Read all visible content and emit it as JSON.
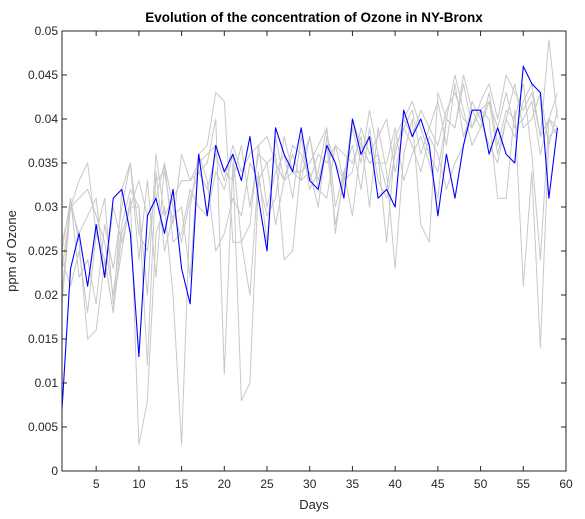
{
  "chart_data": {
    "type": "line",
    "title": "Evolution of the concentration of Ozone in NY-Bronx",
    "xlabel": "Days",
    "ylabel": "ppm of Ozone",
    "xlim": [
      1,
      60
    ],
    "ylim": [
      0,
      0.05
    ],
    "xticks": [
      5,
      10,
      15,
      20,
      25,
      30,
      35,
      40,
      45,
      50,
      55,
      60
    ],
    "yticks": [
      0,
      0.005,
      0.01,
      0.015,
      0.02,
      0.025,
      0.03,
      0.035,
      0.04,
      0.045,
      0.05
    ],
    "x": [
      1,
      2,
      3,
      4,
      5,
      6,
      7,
      8,
      9,
      10,
      11,
      12,
      13,
      14,
      15,
      16,
      17,
      18,
      19,
      20,
      21,
      22,
      23,
      24,
      25,
      26,
      27,
      28,
      29,
      30,
      31,
      32,
      33,
      34,
      35,
      36,
      37,
      38,
      39,
      40,
      41,
      42,
      43,
      44,
      45,
      46,
      47,
      48,
      49,
      50,
      51,
      52,
      53,
      54,
      55,
      56,
      57,
      58,
      59
    ],
    "grid": false,
    "legend": "none",
    "series": [
      {
        "highlight": true,
        "color": "#0000ff",
        "values": [
          0.007,
          0.023,
          0.027,
          0.021,
          0.028,
          0.022,
          0.031,
          0.032,
          0.027,
          0.013,
          0.029,
          0.031,
          0.027,
          0.032,
          0.023,
          0.019,
          0.036,
          0.029,
          0.037,
          0.034,
          0.036,
          0.033,
          0.038,
          0.031,
          0.025,
          0.039,
          0.036,
          0.034,
          0.039,
          0.033,
          0.032,
          0.037,
          0.035,
          0.031,
          0.04,
          0.036,
          0.038,
          0.031,
          0.032,
          0.03,
          0.041,
          0.038,
          0.04,
          0.037,
          0.029,
          0.036,
          0.031,
          0.037,
          0.041,
          0.041,
          0.036,
          0.039,
          0.036,
          0.035,
          0.046,
          0.044,
          0.043,
          0.031,
          0.039
        ]
      },
      {
        "highlight": false,
        "color": "#c8c8c8",
        "values": [
          0.025,
          0.031,
          0.022,
          0.024,
          0.019,
          0.028,
          0.023,
          0.03,
          0.035,
          0.024,
          0.033,
          0.022,
          0.035,
          0.026,
          0.027,
          0.032,
          0.03,
          0.029,
          0.034,
          0.032,
          0.036,
          0.026,
          0.028,
          0.037,
          0.03,
          0.034,
          0.036,
          0.031,
          0.038,
          0.032,
          0.034,
          0.039,
          0.03,
          0.034,
          0.037,
          0.032,
          0.039,
          0.033,
          0.031,
          0.036,
          0.04,
          0.038,
          0.041,
          0.039,
          0.037,
          0.041,
          0.043,
          0.04,
          0.039,
          0.042,
          0.044,
          0.04,
          0.045,
          0.043,
          0.041,
          0.043,
          0.038,
          0.04,
          0.043
        ]
      },
      {
        "highlight": false,
        "color": "#c8c8c8",
        "values": [
          0.02,
          0.031,
          0.026,
          0.015,
          0.016,
          0.024,
          0.018,
          0.027,
          0.03,
          0.03,
          0.012,
          0.034,
          0.025,
          0.029,
          0.03,
          0.022,
          0.036,
          0.033,
          0.025,
          0.027,
          0.031,
          0.029,
          0.035,
          0.033,
          0.029,
          0.031,
          0.038,
          0.034,
          0.033,
          0.038,
          0.033,
          0.037,
          0.028,
          0.033,
          0.039,
          0.035,
          0.041,
          0.036,
          0.032,
          0.038,
          0.04,
          0.042,
          0.039,
          0.036,
          0.034,
          0.04,
          0.045,
          0.041,
          0.037,
          0.039,
          0.042,
          0.036,
          0.04,
          0.044,
          0.039,
          0.04,
          0.043,
          0.037,
          0.041
        ]
      },
      {
        "highlight": false,
        "color": "#c8c8c8",
        "values": [
          0.024,
          0.021,
          0.025,
          0.018,
          0.027,
          0.031,
          0.019,
          0.025,
          0.031,
          0.003,
          0.008,
          0.027,
          0.03,
          0.02,
          0.003,
          0.03,
          0.036,
          0.037,
          0.043,
          0.042,
          0.026,
          0.026,
          0.02,
          0.034,
          0.026,
          0.038,
          0.033,
          0.036,
          0.033,
          0.034,
          0.03,
          0.038,
          0.035,
          0.033,
          0.04,
          0.037,
          0.035,
          0.035,
          0.035,
          0.039,
          0.033,
          0.036,
          0.038,
          0.035,
          0.031,
          0.04,
          0.039,
          0.045,
          0.041,
          0.041,
          0.042,
          0.039,
          0.043,
          0.039,
          0.04,
          0.042,
          0.036,
          0.04,
          0.038
        ]
      },
      {
        "highlight": false,
        "color": "#c8c8c8",
        "values": [
          0.023,
          0.03,
          0.031,
          0.032,
          0.029,
          0.026,
          0.02,
          0.028,
          0.032,
          0.03,
          0.02,
          0.036,
          0.029,
          0.031,
          0.033,
          0.033,
          0.034,
          0.035,
          0.04,
          0.011,
          0.035,
          0.008,
          0.01,
          0.033,
          0.035,
          0.028,
          0.033,
          0.034,
          0.034,
          0.035,
          0.037,
          0.039,
          0.027,
          0.034,
          0.029,
          0.037,
          0.035,
          0.036,
          0.026,
          0.037,
          0.039,
          0.037,
          0.034,
          0.038,
          0.036,
          0.032,
          0.035,
          0.037,
          0.042,
          0.04,
          0.037,
          0.035,
          0.04,
          0.038,
          0.042,
          0.044,
          0.038,
          0.049,
          0.04
        ]
      },
      {
        "highlight": false,
        "color": "#c8c8c8",
        "values": [
          0.026,
          0.03,
          0.033,
          0.035,
          0.027,
          0.024,
          0.018,
          0.032,
          0.035,
          0.027,
          0.025,
          0.033,
          0.034,
          0.028,
          0.036,
          0.033,
          0.035,
          0.036,
          0.037,
          0.034,
          0.033,
          0.037,
          0.03,
          0.036,
          0.035,
          0.036,
          0.024,
          0.025,
          0.035,
          0.038,
          0.032,
          0.031,
          0.037,
          0.036,
          0.035,
          0.038,
          0.03,
          0.039,
          0.034,
          0.023,
          0.036,
          0.04,
          0.028,
          0.026,
          0.043,
          0.04,
          0.039,
          0.044,
          0.039,
          0.041,
          0.04,
          0.031,
          0.031,
          0.041,
          0.021,
          0.034,
          0.014,
          0.038,
          0.039
        ]
      },
      {
        "highlight": false,
        "color": "#c8c8c8",
        "values": [
          0.019,
          0.03,
          0.027,
          0.029,
          0.031,
          0.022,
          0.03,
          0.026,
          0.03,
          0.033,
          0.029,
          0.031,
          0.035,
          0.03,
          0.026,
          0.031,
          0.034,
          0.032,
          0.036,
          0.033,
          0.037,
          0.034,
          0.036,
          0.037,
          0.038,
          0.035,
          0.033,
          0.037,
          0.036,
          0.033,
          0.036,
          0.035,
          0.037,
          0.033,
          0.034,
          0.039,
          0.036,
          0.038,
          0.04,
          0.034,
          0.039,
          0.041,
          0.036,
          0.039,
          0.042,
          0.037,
          0.044,
          0.038,
          0.041,
          0.039,
          0.043,
          0.037,
          0.041,
          0.04,
          0.044,
          0.036,
          0.024,
          0.04,
          0.039
        ]
      }
    ]
  }
}
